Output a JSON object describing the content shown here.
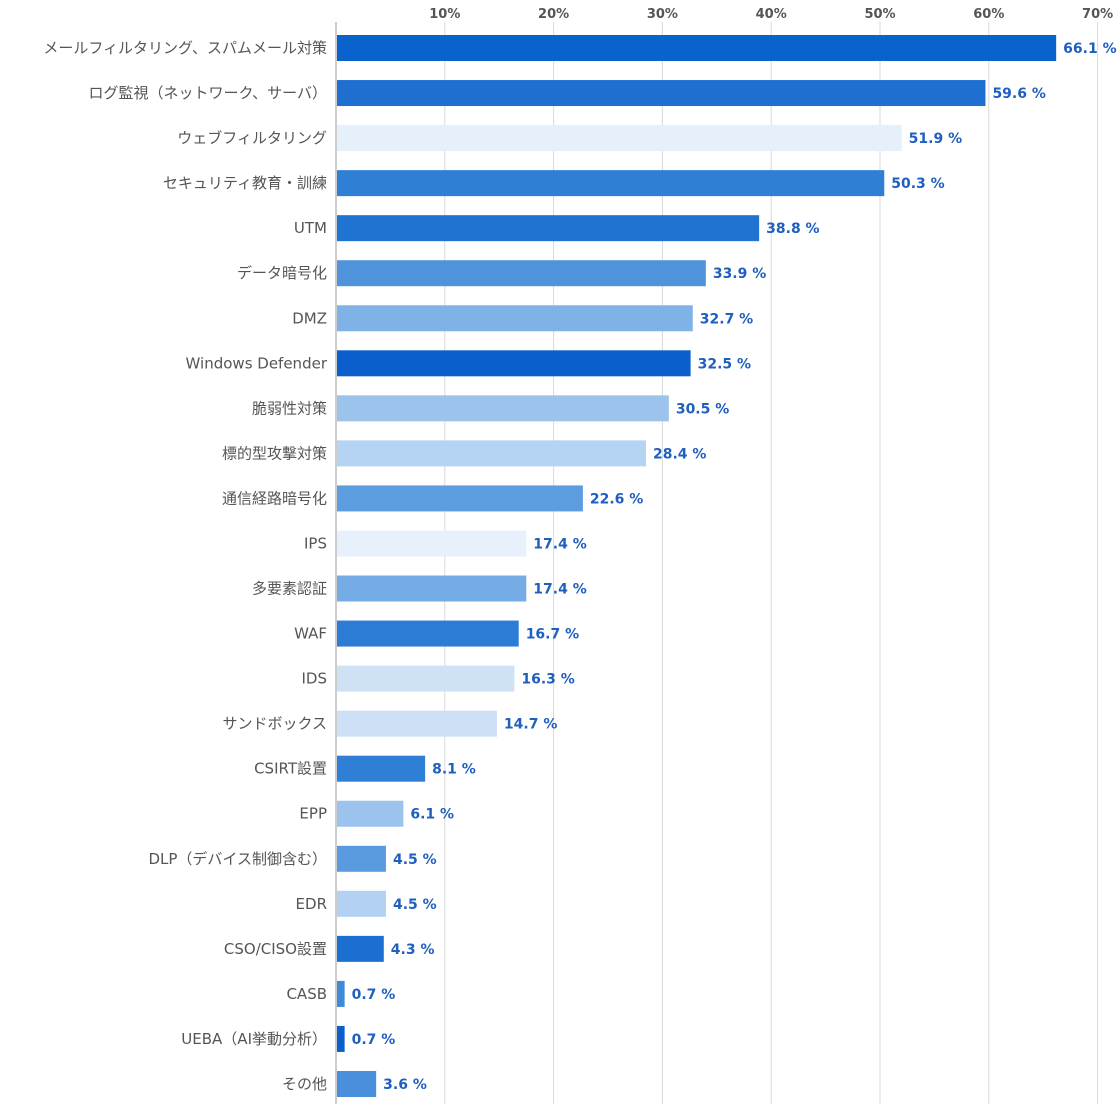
{
  "chart_data": {
    "type": "bar",
    "orientation": "horizontal",
    "categories": [
      "メールフィルタリング、スパムメール対策",
      "ログ監視（ネットワーク、サーバ）",
      "ウェブフィルタリング",
      "セキュリティ教育・訓練",
      "UTM",
      "データ暗号化",
      "DMZ",
      "Windows Defender",
      "脆弱性対策",
      "標的型攻撃対策",
      "通信経路暗号化",
      "IPS",
      "多要素認証",
      "WAF",
      "IDS",
      "サンドボックス",
      "CSIRT設置",
      "EPP",
      "DLP（デバイス制御含む）",
      "EDR",
      "CSO/CISO設置",
      "CASB",
      "UEBA（AI挙動分析）",
      "その他"
    ],
    "values": [
      66.1,
      59.6,
      51.9,
      50.3,
      38.8,
      33.9,
      32.7,
      32.5,
      30.5,
      28.4,
      22.6,
      17.4,
      17.4,
      16.7,
      16.3,
      14.7,
      8.1,
      6.1,
      4.5,
      4.5,
      4.3,
      0.7,
      0.7,
      3.6
    ],
    "value_labels": [
      "66.1 %",
      "59.6 %",
      "51.9 %",
      "50.3 %",
      "38.8 %",
      "33.9 %",
      "32.7 %",
      "32.5 %",
      "30.5 %",
      "28.4 %",
      "22.6 %",
      "17.4 %",
      "17.4 %",
      "16.7 %",
      "16.3 %",
      "14.7 %",
      "8.1 %",
      "6.1 %",
      "4.5 %",
      "4.5 %",
      "4.3 %",
      "0.7 %",
      "0.7 %",
      "3.6 %"
    ],
    "bar_colors": [
      "#0a63cc",
      "#1e6fd0",
      "#e6f0fa",
      "#2f80d4",
      "#1f74d2",
      "#4f94db",
      "#7fb3e8",
      "#0a5fcc",
      "#9bc3ec",
      "#b5d3f2",
      "#5c9ddf",
      "#e8f1fb",
      "#76acE6",
      "#2c7bd5",
      "#cfe1f5",
      "#cde0f5",
      "#2f7fd6",
      "#9cc3ed",
      "#5a9be0",
      "#b3d1f2",
      "#1b6fd1",
      "#3d89da",
      "#0a5fcc",
      "#4a8fdc"
    ],
    "x_ticks": [
      "10%",
      "20%",
      "30%",
      "40%",
      "50%",
      "60%",
      "70%"
    ],
    "xlim": [
      0,
      70
    ],
    "grid": true,
    "title": "",
    "xlabel": "",
    "ylabel": ""
  }
}
